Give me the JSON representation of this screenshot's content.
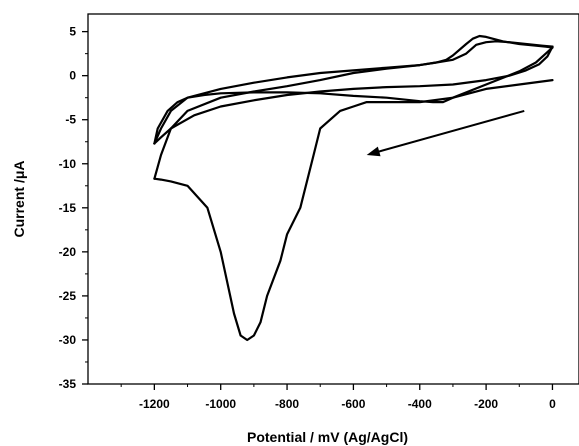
{
  "chart_data": {
    "type": "line",
    "xlabel": "Potential / mV (Ag/AgCl)",
    "ylabel": "Current /μA",
    "xlim": [
      -1400,
      80
    ],
    "ylim": [
      -35,
      7
    ],
    "x_ticks": [
      -1200,
      -1000,
      -800,
      -600,
      -400,
      -200,
      0
    ],
    "y_ticks": [
      5,
      0,
      -5,
      -10,
      -15,
      -20,
      -25,
      -30,
      -35
    ],
    "grid": false,
    "legend": "none",
    "series": [
      {
        "x": [
          0,
          -100,
          -200,
          -300,
          -340,
          -400,
          -500,
          -560,
          -600,
          -640,
          -700,
          -720,
          -760,
          -800,
          -820,
          -860,
          -880,
          -900,
          -920,
          -940,
          -960,
          -1000,
          -1040,
          -1100,
          -1150,
          -1180,
          -1200
        ],
        "y": [
          -0.5,
          -1,
          -1.5,
          -2.5,
          -2.7,
          -3,
          -3,
          -3,
          -3.5,
          -4,
          -6,
          -9,
          -15,
          -18,
          -21,
          -25,
          -28,
          -29.5,
          -30,
          -29.5,
          -27,
          -20,
          -15,
          -12.5,
          -12,
          -11.8,
          -11.7
        ]
      },
      {
        "x": [
          -1200,
          -1180,
          -1150,
          -1100,
          -1000,
          -900,
          -800,
          -700,
          -600,
          -500,
          -400,
          -350,
          -320,
          -300,
          -260,
          -240,
          -220,
          -200,
          -180,
          -150,
          -100,
          -50,
          -20,
          0
        ],
        "y": [
          -11.7,
          -9,
          -6,
          -4,
          -2.5,
          -1.8,
          -1.2,
          -0.5,
          0.3,
          0.8,
          1.2,
          1.5,
          1.8,
          2.3,
          3.6,
          4.2,
          4.5,
          4.4,
          4.2,
          3.9,
          3.6,
          3.4,
          3.3,
          3.2
        ]
      },
      {
        "x": [
          0,
          -20,
          -50,
          -100,
          -200,
          -300,
          -330,
          -360,
          -400,
          -500,
          -600,
          -700,
          -800,
          -900,
          -1000,
          -1050,
          -1100,
          -1130,
          -1160,
          -1190,
          -1200
        ],
        "y": [
          3.2,
          2.5,
          1.5,
          0.5,
          -1,
          -2.5,
          -3,
          -3,
          -2.9,
          -2.5,
          -2.3,
          -2,
          -1.9,
          -1.9,
          -2,
          -2.2,
          -2.5,
          -3,
          -4,
          -6,
          -7.7
        ]
      },
      {
        "x": [
          -1200,
          -1180,
          -1150,
          -1100,
          -1000,
          -900,
          -800,
          -700,
          -600,
          -500,
          -400,
          -350,
          -300,
          -260,
          -230,
          -200,
          -170,
          -130,
          -80,
          -30,
          0
        ],
        "y": [
          -7.7,
          -6,
          -4,
          -2.5,
          -1.5,
          -0.8,
          -0.2,
          0.3,
          0.6,
          0.9,
          1.2,
          1.5,
          1.8,
          2.5,
          3.5,
          3.8,
          3.9,
          3.8,
          3.6,
          3.4,
          3.3
        ]
      },
      {
        "x": [
          0,
          -15,
          -40,
          -80,
          -130,
          -200,
          -300,
          -400,
          -500,
          -600,
          -700,
          -800,
          -900,
          -1000,
          -1080,
          -1150,
          -1180,
          -1200
        ],
        "y": [
          3.3,
          2.2,
          1.3,
          0.6,
          0,
          -0.5,
          -1,
          -1.2,
          -1.3,
          -1.5,
          -1.8,
          -2.2,
          -2.8,
          -3.5,
          -4.5,
          -6,
          -7,
          -7.7
        ]
      }
    ],
    "annotation": {
      "type": "arrow",
      "from": [
        -85,
        -4
      ],
      "to": [
        -560,
        -9
      ]
    }
  }
}
